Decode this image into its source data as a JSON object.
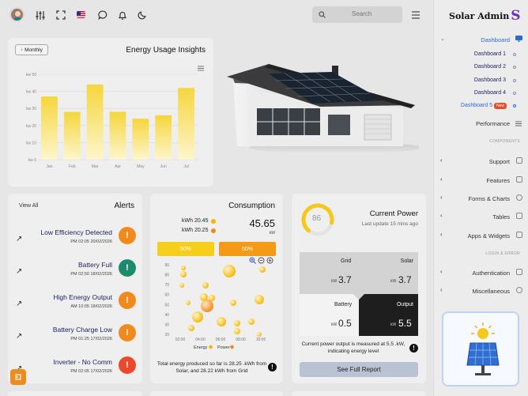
{
  "header": {
    "search_placeholder": "Search",
    "brand_text": "Solar Admin",
    "brand_mark": "S"
  },
  "energy_card": {
    "filter_label": "Monthly",
    "title": "Energy Usage Insights",
    "chart_data": {
      "type": "bar",
      "title": "Energy Usage Insights",
      "categories": [
        "Jan",
        "Feb",
        "Mar",
        "Apr",
        "May",
        "Jun",
        "Jul"
      ],
      "values": [
        37,
        28,
        44,
        28,
        24,
        26,
        42
      ],
      "ylim": [
        0,
        50
      ],
      "yticks": [
        "kw 0",
        "kw 10",
        "kw 20",
        "kw 30",
        "kw 40",
        "kw 50"
      ],
      "xlabel": "",
      "ylabel": "",
      "grid": true,
      "colors": [
        "#f5d63d",
        "#fdf6cc"
      ]
    }
  },
  "alerts": {
    "view_all": "View All",
    "title": "Alerts",
    "items": [
      {
        "title": "Low Efficiency Detected",
        "time": "PM 02:05 20/02/2026",
        "color": "#f08a1c",
        "icon": "!"
      },
      {
        "title": "Battery Full",
        "time": "PM 02:50 18/02/2026",
        "color": "#1c8a6b",
        "icon": "!"
      },
      {
        "title": "High Energy Output",
        "time": "AM 10:05 18/02/2026",
        "color": "#f08a1c",
        "icon": "!"
      },
      {
        "title": "Battery Charge Low",
        "time": "PM 01:25 17/02/2026",
        "color": "#f08a1c",
        "icon": "!"
      },
      {
        "title": "Inverter - No Comm",
        "time": "PM 02:05 17/02/2026",
        "color": "#ea4a2b",
        "icon": "!"
      }
    ]
  },
  "consumption": {
    "title": "Consumption",
    "legend1": "kWh 20.45",
    "legend2": "kWh 20.25",
    "value": "45.65",
    "unit": "kW",
    "bar1_label": "50%",
    "bar2_label": "50%",
    "footer": "Total energy produced so far is 28.25 .kWh from Solar, and 28.22 kWh from Grid",
    "chart_data": {
      "type": "scatter",
      "x_ticks": [
        "02:00",
        "04:00",
        "06:00",
        "08:00",
        "10:00"
      ],
      "y_ticks": [
        "20",
        "30",
        "40",
        "50",
        "60",
        "70",
        "80",
        "90"
      ],
      "series": [
        {
          "name": "Energy",
          "color": "#f5b400"
        },
        {
          "name": "Power",
          "color": "#f08a1c"
        }
      ]
    }
  },
  "current_power": {
    "title": "Current Power",
    "gauge_value": "86",
    "gauge_percent": 86,
    "update_text": "Last update 15 mins ago",
    "grid_label": "Grid",
    "grid_value": "3.7",
    "solar_label": "Solar",
    "solar_value": "3.7",
    "battery_label": "Battery",
    "battery_value": "0.5",
    "output_label": "Output",
    "output_value": "5.5",
    "unit": "kW",
    "note": "Current power output is measured at 5.5 .kW, indicating energy level",
    "report_button": "See Full Report"
  },
  "sidebar": {
    "dashboard": "Dashboard",
    "sub_items": [
      "Dashboard 1",
      "Dashboard 2",
      "Dashboard 3",
      "Dashboard 4",
      "Dashboard 5"
    ],
    "new_badge": "New",
    "performance": "Performance",
    "components_heading": "COMPONENTS",
    "components": [
      "Support",
      "Features",
      "Forms & Charts",
      "Tables",
      "Apps & Widgets"
    ],
    "login_heading": "LOGIN & ERROR",
    "auth_items": [
      "Authentication",
      "Miscellaneous"
    ]
  }
}
